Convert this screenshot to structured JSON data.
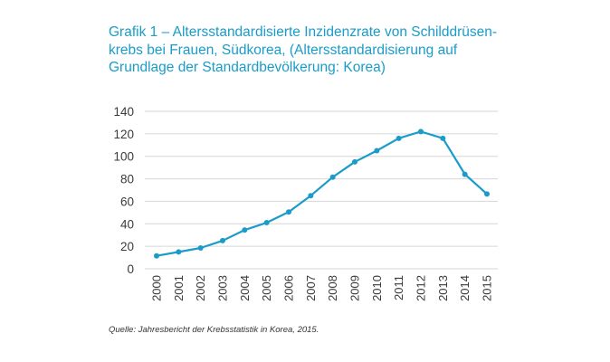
{
  "title_lines": [
    "Grafik 1 – Altersstandardisierte Inzidenzrate von Schilddrüsen-",
    "krebs bei Frauen, Südkorea, (Altersstandardisierung auf",
    "Grundlage der Standardbevölkerung: Korea)"
  ],
  "source": "Quelle: Jahresbericht der Krebsstatistik in Korea, 2015.",
  "colors": {
    "accent": "#1a9cc9",
    "grid": "#d6d6d6",
    "text": "#3a3a3a"
  },
  "chart_data": {
    "type": "line",
    "title": "Grafik 1 – Altersstandardisierte Inzidenzrate von Schilddrüsenkrebs bei Frauen, Südkorea, (Altersstandardisierung auf Grundlage der Standardbevölkerung: Korea)",
    "xlabel": "",
    "ylabel": "",
    "ylim": [
      0,
      140
    ],
    "yticks": [
      "0",
      "20",
      "40",
      "60",
      "80",
      "100",
      "120",
      "140"
    ],
    "grid": true,
    "categories": [
      "2000",
      "2001",
      "2002",
      "2003",
      "2004",
      "2005",
      "2006",
      "2007",
      "2008",
      "2009",
      "2010",
      "2011",
      "2012",
      "2013",
      "2014",
      "2015"
    ],
    "series": [
      {
        "name": "Inzidenzrate",
        "values": [
          11.5,
          15,
          18.5,
          25,
          34.5,
          41,
          50.5,
          65,
          81.5,
          95,
          105,
          116,
          122,
          116,
          84,
          66.5
        ]
      }
    ]
  }
}
